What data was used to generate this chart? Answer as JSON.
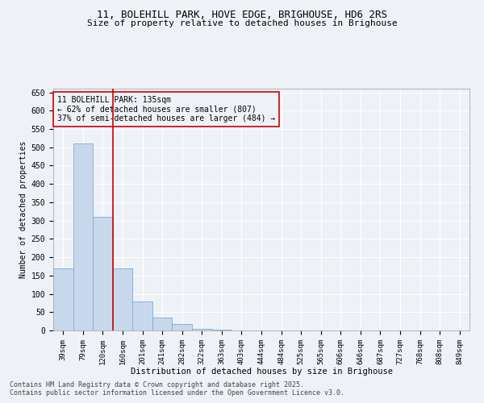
{
  "title_line1": "11, BOLEHILL PARK, HOVE EDGE, BRIGHOUSE, HD6 2RS",
  "title_line2": "Size of property relative to detached houses in Brighouse",
  "xlabel": "Distribution of detached houses by size in Brighouse",
  "ylabel": "Number of detached properties",
  "bar_color": "#c8d8ec",
  "bar_edge_color": "#7aacd4",
  "categories": [
    "39sqm",
    "79sqm",
    "120sqm",
    "160sqm",
    "201sqm",
    "241sqm",
    "282sqm",
    "322sqm",
    "363sqm",
    "403sqm",
    "444sqm",
    "484sqm",
    "525sqm",
    "565sqm",
    "606sqm",
    "646sqm",
    "687sqm",
    "727sqm",
    "768sqm",
    "808sqm",
    "849sqm"
  ],
  "values": [
    170,
    510,
    310,
    170,
    80,
    35,
    18,
    5,
    2,
    1,
    0,
    0,
    0,
    0,
    0,
    0,
    0,
    0,
    0,
    0,
    0
  ],
  "vline_x": 2.5,
  "vline_color": "#cc0000",
  "annotation_text": "11 BOLEHILL PARK: 135sqm\n← 62% of detached houses are smaller (807)\n37% of semi-detached houses are larger (484) →",
  "annotation_box_color": "#cc0000",
  "ylim": [
    0,
    660
  ],
  "yticks": [
    0,
    50,
    100,
    150,
    200,
    250,
    300,
    350,
    400,
    450,
    500,
    550,
    600,
    650
  ],
  "footer_line1": "Contains HM Land Registry data © Crown copyright and database right 2025.",
  "footer_line2": "Contains public sector information licensed under the Open Government Licence v3.0.",
  "background_color": "#eef2f7",
  "grid_color": "#ffffff"
}
